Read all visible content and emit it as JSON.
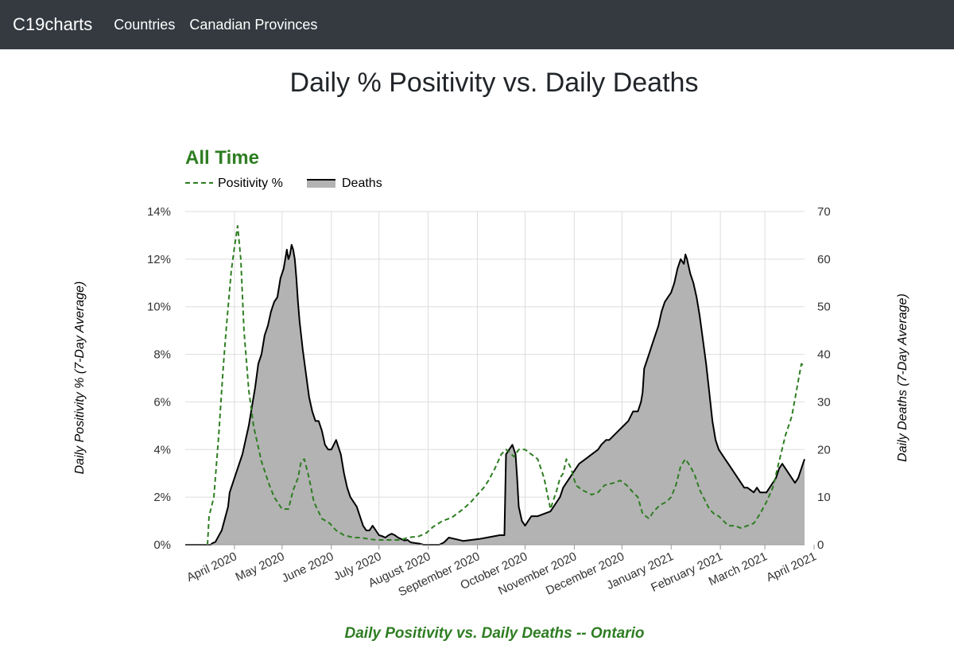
{
  "nav": {
    "brand": "C19charts",
    "links": [
      "Countries",
      "Canadian Provinces"
    ]
  },
  "page": {
    "title": "Daily % Positivity vs. Daily Deaths"
  },
  "colors": {
    "positivity": "#2e7d22",
    "deaths_line": "#000000",
    "deaths_fill": "#b3b3b3",
    "grid": "#dddddd",
    "navbar": "#343a40"
  },
  "chart_data": {
    "type": "line",
    "title": "All Time",
    "subtitle": "Daily Positivity vs. Daily Deaths -- Ontario",
    "legend": [
      "Positivity %",
      "Deaths"
    ],
    "legend_position": "top-left",
    "ylabel_left": "Daily Positivity % (7-Day Average)",
    "ylabel_right": "Daily Deaths (7-Day Average)",
    "ylim_left": [
      0,
      14
    ],
    "ylim_right": [
      0,
      70
    ],
    "yticks_left": [
      "0%",
      "2%",
      "4%",
      "6%",
      "8%",
      "10%",
      "12%",
      "14%"
    ],
    "yticks_right": [
      "0",
      "10",
      "20",
      "30",
      "40",
      "50",
      "60",
      "70"
    ],
    "x_range_days": [
      0,
      390
    ],
    "x_start_date": "2020-03-01",
    "x_tick_labels": [
      "April 2020",
      "May 2020",
      "June 2020",
      "July 2020",
      "August 2020",
      "September 2020",
      "October 2020",
      "November 2020",
      "December 2020",
      "January 2021",
      "February 2021",
      "March 2021",
      "April 2021"
    ],
    "x_tick_days": [
      31,
      61,
      92,
      122,
      153,
      184,
      214,
      245,
      275,
      306,
      337,
      365,
      396
    ],
    "series": [
      {
        "name": "Positivity %",
        "axis": "left",
        "style": "dashed",
        "points": [
          [
            14,
            0
          ],
          [
            15,
            1.2
          ],
          [
            18,
            2
          ],
          [
            21,
            4.5
          ],
          [
            24,
            7.5
          ],
          [
            26,
            9.2
          ],
          [
            29,
            11.5
          ],
          [
            31,
            12.5
          ],
          [
            33,
            13.4
          ],
          [
            35,
            12
          ],
          [
            37,
            9
          ],
          [
            40,
            6.5
          ],
          [
            43,
            5
          ],
          [
            48,
            3.5
          ],
          [
            53,
            2.5
          ],
          [
            56,
            2
          ],
          [
            61,
            1.5
          ],
          [
            65,
            1.5
          ],
          [
            68,
            2.3
          ],
          [
            71,
            2.8
          ],
          [
            73,
            3.5
          ],
          [
            75,
            3.6
          ],
          [
            78,
            2.8
          ],
          [
            81,
            1.8
          ],
          [
            86,
            1.1
          ],
          [
            91,
            0.9
          ],
          [
            95,
            0.6
          ],
          [
            100,
            0.4
          ],
          [
            106,
            0.3
          ],
          [
            110,
            0.3
          ],
          [
            120,
            0.2
          ],
          [
            130,
            0.2
          ],
          [
            136,
            0.2
          ],
          [
            140,
            0.3
          ],
          [
            147,
            0.35
          ],
          [
            152,
            0.5
          ],
          [
            156,
            0.75
          ],
          [
            162,
            1
          ],
          [
            168,
            1.15
          ],
          [
            175,
            1.5
          ],
          [
            180,
            1.8
          ],
          [
            184,
            2.1
          ],
          [
            188,
            2.4
          ],
          [
            191,
            2.7
          ],
          [
            195,
            3.2
          ],
          [
            199,
            3.8
          ],
          [
            202,
            4
          ],
          [
            204,
            3.9
          ],
          [
            207,
            3.7
          ],
          [
            210,
            4
          ],
          [
            214,
            4
          ],
          [
            218,
            3.8
          ],
          [
            222,
            3.6
          ],
          [
            226,
            2.8
          ],
          [
            230,
            1.5
          ],
          [
            234,
            2.3
          ],
          [
            236,
            2.8
          ],
          [
            238,
            3
          ],
          [
            240,
            3.6
          ],
          [
            243,
            3.2
          ],
          [
            246,
            2.5
          ],
          [
            250,
            2.3
          ],
          [
            256,
            2.1
          ],
          [
            260,
            2.2
          ],
          [
            264,
            2.5
          ],
          [
            270,
            2.6
          ],
          [
            274,
            2.7
          ],
          [
            278,
            2.5
          ],
          [
            282,
            2.2
          ],
          [
            285,
            2
          ],
          [
            288,
            1.3
          ],
          [
            292,
            1.1
          ],
          [
            295,
            1.4
          ],
          [
            298,
            1.6
          ],
          [
            300,
            1.7
          ],
          [
            303,
            1.8
          ],
          [
            306,
            2
          ],
          [
            309,
            2.5
          ],
          [
            312,
            3.3
          ],
          [
            315,
            3.6
          ],
          [
            318,
            3.3
          ],
          [
            321,
            2.9
          ],
          [
            324,
            2.3
          ],
          [
            327,
            1.9
          ],
          [
            330,
            1.5
          ],
          [
            333,
            1.3
          ],
          [
            336,
            1.2
          ],
          [
            339,
            1
          ],
          [
            342,
            0.8
          ],
          [
            346,
            0.8
          ],
          [
            350,
            0.7
          ],
          [
            354,
            0.8
          ],
          [
            358,
            0.9
          ],
          [
            362,
            1.3
          ],
          [
            366,
            1.8
          ],
          [
            370,
            2.4
          ],
          [
            374,
            3.5
          ],
          [
            378,
            4.6
          ],
          [
            382,
            5.4
          ],
          [
            385,
            6.5
          ],
          [
            388,
            7.6
          ],
          [
            390,
            7.5
          ]
        ]
      },
      {
        "name": "Deaths",
        "axis": "right",
        "style": "solid-filled",
        "points": [
          [
            0,
            0
          ],
          [
            16,
            0
          ],
          [
            17,
            0.3
          ],
          [
            19,
            0.6
          ],
          [
            21,
            1.8
          ],
          [
            23,
            3
          ],
          [
            25,
            5.5
          ],
          [
            27,
            8
          ],
          [
            28,
            11
          ],
          [
            30,
            13
          ],
          [
            32,
            15
          ],
          [
            34,
            17
          ],
          [
            36,
            19
          ],
          [
            38,
            22
          ],
          [
            40,
            25
          ],
          [
            42,
            29
          ],
          [
            44,
            33
          ],
          [
            46,
            38
          ],
          [
            48,
            40
          ],
          [
            50,
            44
          ],
          [
            52,
            46
          ],
          [
            54,
            49
          ],
          [
            56,
            51
          ],
          [
            58,
            52
          ],
          [
            60,
            56
          ],
          [
            62,
            58
          ],
          [
            64,
            62
          ],
          [
            65,
            60
          ],
          [
            66,
            61
          ],
          [
            67,
            63
          ],
          [
            68,
            62
          ],
          [
            69,
            60
          ],
          [
            70,
            56
          ],
          [
            71,
            51
          ],
          [
            72,
            47
          ],
          [
            74,
            41
          ],
          [
            76,
            36
          ],
          [
            78,
            31
          ],
          [
            80,
            28
          ],
          [
            82,
            26
          ],
          [
            84,
            26
          ],
          [
            86,
            24
          ],
          [
            88,
            21
          ],
          [
            90,
            20
          ],
          [
            92,
            20
          ],
          [
            95,
            22
          ],
          [
            98,
            19
          ],
          [
            100,
            15
          ],
          [
            102,
            12
          ],
          [
            104,
            10
          ],
          [
            106,
            9
          ],
          [
            108,
            8
          ],
          [
            110,
            6
          ],
          [
            112,
            4
          ],
          [
            114,
            3
          ],
          [
            116,
            3
          ],
          [
            118,
            4
          ],
          [
            120,
            3
          ],
          [
            122,
            2
          ],
          [
            124,
            1.8
          ],
          [
            126,
            1.5
          ],
          [
            128,
            2
          ],
          [
            130,
            2.3
          ],
          [
            132,
            2
          ],
          [
            134,
            1.5
          ],
          [
            136,
            1.2
          ],
          [
            138,
            0.9
          ],
          [
            140,
            1
          ],
          [
            142,
            0.5
          ],
          [
            144,
            0.4
          ],
          [
            146,
            0.3
          ],
          [
            148,
            0.2
          ],
          [
            150,
            0
          ],
          [
            160,
            0
          ],
          [
            163,
            0.5
          ],
          [
            166,
            1.5
          ],
          [
            170,
            1.2
          ],
          [
            175,
            0.8
          ],
          [
            180,
            1
          ],
          [
            185,
            1.2
          ],
          [
            190,
            1.5
          ],
          [
            198,
            2
          ],
          [
            201,
            2
          ],
          [
            202,
            19
          ],
          [
            204,
            20
          ],
          [
            206,
            21
          ],
          [
            208,
            19
          ],
          [
            209,
            14
          ],
          [
            210,
            8
          ],
          [
            212,
            5
          ],
          [
            214,
            4
          ],
          [
            216,
            5
          ],
          [
            218,
            6
          ],
          [
            222,
            6
          ],
          [
            226,
            6.5
          ],
          [
            230,
            7
          ],
          [
            232,
            8
          ],
          [
            234,
            9
          ],
          [
            236,
            10
          ],
          [
            238,
            12
          ],
          [
            240,
            13
          ],
          [
            242,
            14
          ],
          [
            244,
            15
          ],
          [
            246,
            16
          ],
          [
            248,
            17
          ],
          [
            252,
            18
          ],
          [
            256,
            19
          ],
          [
            260,
            20
          ],
          [
            262,
            21
          ],
          [
            265,
            22
          ],
          [
            267,
            22
          ],
          [
            270,
            23
          ],
          [
            273,
            24
          ],
          [
            276,
            25
          ],
          [
            279,
            26
          ],
          [
            282,
            28
          ],
          [
            285,
            28
          ],
          [
            287,
            30
          ],
          [
            288,
            32
          ],
          [
            289,
            37
          ],
          [
            290,
            38
          ],
          [
            292,
            40
          ],
          [
            294,
            42
          ],
          [
            296,
            44
          ],
          [
            298,
            46
          ],
          [
            300,
            49
          ],
          [
            302,
            51
          ],
          [
            304,
            52
          ],
          [
            306,
            53
          ],
          [
            308,
            55
          ],
          [
            310,
            58
          ],
          [
            312,
            60
          ],
          [
            314,
            59
          ],
          [
            315,
            61
          ],
          [
            316,
            60
          ],
          [
            318,
            57
          ],
          [
            320,
            55
          ],
          [
            322,
            52
          ],
          [
            324,
            48
          ],
          [
            326,
            43
          ],
          [
            328,
            38
          ],
          [
            330,
            32
          ],
          [
            332,
            26
          ],
          [
            334,
            22
          ],
          [
            336,
            20
          ],
          [
            338,
            19
          ],
          [
            340,
            18
          ],
          [
            342,
            17
          ],
          [
            344,
            16
          ],
          [
            346,
            15
          ],
          [
            348,
            14
          ],
          [
            350,
            13
          ],
          [
            352,
            12
          ],
          [
            354,
            12
          ],
          [
            356,
            11.5
          ],
          [
            358,
            11
          ],
          [
            360,
            12
          ],
          [
            362,
            11
          ],
          [
            364,
            11
          ],
          [
            366,
            11
          ],
          [
            368,
            12
          ],
          [
            370,
            13
          ],
          [
            372,
            14
          ],
          [
            374,
            16
          ],
          [
            376,
            17
          ],
          [
            378,
            16
          ],
          [
            380,
            15
          ],
          [
            382,
            14
          ],
          [
            384,
            13
          ],
          [
            386,
            14
          ],
          [
            388,
            16
          ],
          [
            390,
            18
          ]
        ]
      }
    ]
  }
}
